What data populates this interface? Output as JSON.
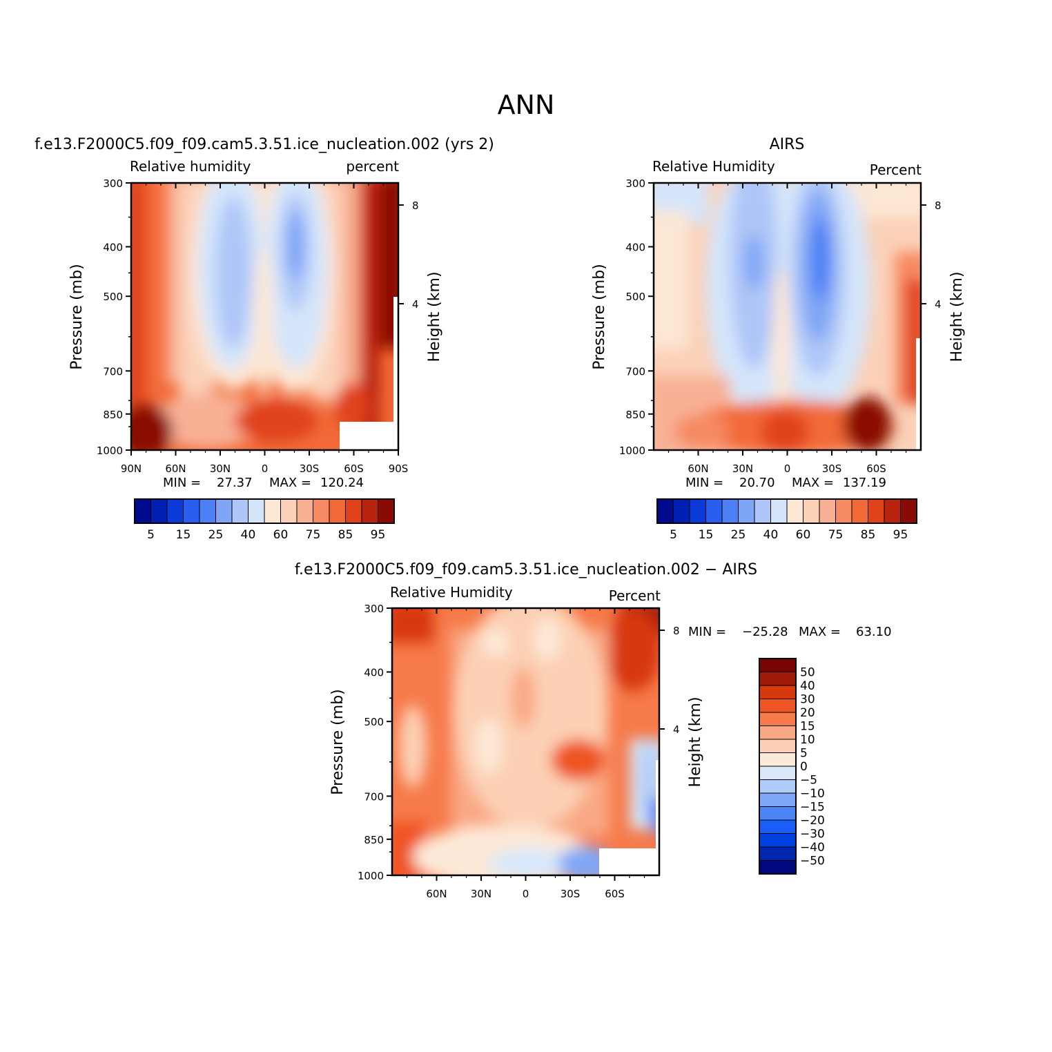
{
  "figure": {
    "title": "ANN"
  },
  "colors": {
    "abs_palette": [
      "#000a8c",
      "#0020b4",
      "#0a3ad8",
      "#2a5ef0",
      "#4c80f4",
      "#7fa5f6",
      "#aec6f8",
      "#d4e5fa",
      "#fde7d5",
      "#fbd1b8",
      "#f8b095",
      "#f68a62",
      "#f26a38",
      "#e0421a",
      "#b82410",
      "#8a0a06"
    ],
    "diff_palette": [
      "#00087e",
      "#0026b0",
      "#0042e0",
      "#1a5ef8",
      "#4a84f8",
      "#7fa8f8",
      "#b0ccf8",
      "#d8e8fa",
      "#fde9d8",
      "#fcd0b4",
      "#f9a884",
      "#f67a4a",
      "#ef5424",
      "#d8380e",
      "#a01a0a",
      "#7a0404"
    ]
  },
  "chart_data": [
    {
      "type": "heatmap",
      "title": "f.e13.F2000C5.f09_f09.cam5.3.51.ice_nucleation.002 (yrs 2)",
      "left_label": "Relative humidity",
      "right_label": "percent",
      "ylabel": "Pressure (mb)",
      "ylabel_right": "Height (km)",
      "xtick_labels": [
        "90N",
        "60N",
        "30N",
        "0",
        "30S",
        "60S",
        "90S"
      ],
      "ytick_labels": [
        "300",
        "400",
        "500",
        "700",
        "850",
        "1000"
      ],
      "ytick_values": [
        300,
        400,
        500,
        700,
        850,
        1000
      ],
      "height_ticks": [
        "8",
        "4"
      ],
      "stats": {
        "min_label": "MIN =",
        "min": "27.37",
        "max_label": "MAX =",
        "max": "120.24"
      },
      "colorbar_labels": [
        "5",
        "15",
        "25",
        "40",
        "60",
        "75",
        "85",
        "95"
      ],
      "scale": "log-pressure"
    },
    {
      "type": "heatmap",
      "title": "AIRS",
      "left_label": "Relative Humidity",
      "right_label": "Percent",
      "ylabel": "Pressure (mb)",
      "ylabel_right": "Height (km)",
      "xtick_labels": [
        "60N",
        "30N",
        "0",
        "30S",
        "60S"
      ],
      "ytick_labels": [
        "300",
        "400",
        "500",
        "700",
        "850",
        "1000"
      ],
      "ytick_values": [
        300,
        400,
        500,
        700,
        850,
        1000
      ],
      "height_ticks": [
        "8",
        "4"
      ],
      "stats": {
        "min_label": "MIN =",
        "min": "20.70",
        "max_label": "MAX =",
        "max": "137.19"
      },
      "colorbar_labels": [
        "5",
        "15",
        "25",
        "40",
        "60",
        "75",
        "85",
        "95"
      ],
      "scale": "log-pressure"
    },
    {
      "type": "heatmap",
      "title": "f.e13.F2000C5.f09_f09.cam5.3.51.ice_nucleation.002 − AIRS",
      "left_label": "Relative Humidity",
      "right_label": "Percent",
      "ylabel": "Pressure (mb)",
      "ylabel_right": "Height (km)",
      "xtick_labels": [
        "60N",
        "30N",
        "0",
        "30S",
        "60S"
      ],
      "ytick_labels": [
        "300",
        "400",
        "500",
        "700",
        "850",
        "1000"
      ],
      "ytick_values": [
        300,
        400,
        500,
        700,
        850,
        1000
      ],
      "height_ticks": [
        "8",
        "4"
      ],
      "stats": {
        "min_label": "MIN =",
        "min": "−25.28",
        "max_label": "MAX =",
        "max": "63.10"
      },
      "colorbar_labels": [
        "50",
        "40",
        "30",
        "20",
        "15",
        "10",
        "5",
        "0",
        "−5",
        "−10",
        "−15",
        "−20",
        "−30",
        "−40",
        "−50"
      ],
      "scale": "log-pressure"
    }
  ]
}
